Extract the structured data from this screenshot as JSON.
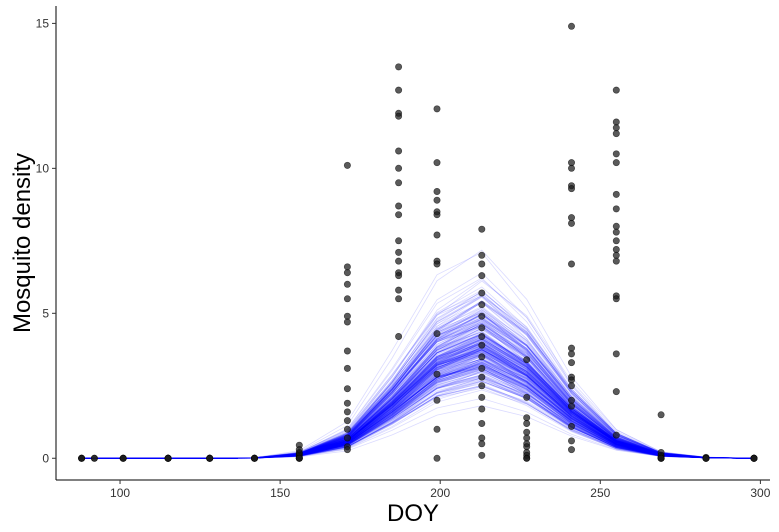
{
  "chart_data": {
    "type": "scatter",
    "title": "",
    "xlabel": "DOY",
    "ylabel": "Mosquito density",
    "xlim": [
      80,
      303
    ],
    "ylim": [
      -0.75,
      15.6
    ],
    "xticks": [
      100,
      150,
      200,
      250,
      300
    ],
    "yticks": [
      0,
      5,
      10,
      15
    ],
    "grid": false,
    "legend": "none",
    "colors": {
      "points": "#1a1a1a",
      "curves": "#0000ff",
      "axis": "#000000"
    },
    "curve_x": [
      88,
      101,
      115,
      128,
      142,
      156,
      171,
      185,
      199,
      213,
      227,
      241,
      255,
      269,
      283,
      298
    ],
    "curve_mean": [
      0,
      0,
      0,
      0,
      0.01,
      0.12,
      0.6,
      1.85,
      3.3,
      3.9,
      3.0,
      1.55,
      0.55,
      0.12,
      0.02,
      0
    ],
    "curve_count": 300,
    "points": [
      {
        "x": 88,
        "y": [
          0,
          0,
          0,
          0
        ]
      },
      {
        "x": 92,
        "y": [
          0,
          0
        ]
      },
      {
        "x": 101,
        "y": [
          0,
          0,
          0,
          0
        ]
      },
      {
        "x": 115,
        "y": [
          0,
          0,
          0,
          0,
          0,
          0,
          0
        ]
      },
      {
        "x": 128,
        "y": [
          0,
          0,
          0,
          0,
          0,
          0
        ]
      },
      {
        "x": 142,
        "y": [
          0,
          0,
          0,
          0,
          0
        ]
      },
      {
        "x": 156,
        "y": [
          0.45,
          0.3,
          0.2,
          0.15,
          0.1,
          0.05,
          0,
          0,
          0,
          0
        ]
      },
      {
        "x": 171,
        "y": [
          10.1,
          6.6,
          6.4,
          6.0,
          5.5,
          4.9,
          4.7,
          3.7,
          3.1,
          2.4,
          1.9,
          1.6,
          1.3,
          1.0,
          0.7,
          0.4,
          0.3
        ]
      },
      {
        "x": 187,
        "y": [
          13.5,
          12.7,
          11.9,
          11.8,
          10.6,
          10.0,
          9.5,
          8.7,
          8.4,
          7.5,
          7.1,
          6.8,
          6.4,
          6.3,
          5.8,
          5.5,
          4.2
        ]
      },
      {
        "x": 199,
        "y": [
          12.05,
          10.2,
          9.2,
          8.9,
          8.5,
          8.4,
          7.7,
          6.8,
          6.7,
          4.3,
          2.9,
          2.0,
          1.0,
          0
        ]
      },
      {
        "x": 213,
        "y": [
          7.9,
          7.0,
          6.7,
          6.3,
          5.7,
          5.3,
          4.9,
          4.5,
          4.2,
          3.9,
          3.5,
          3.1,
          2.8,
          2.5,
          2.1,
          1.7,
          1.2,
          0.7,
          0.5,
          0.1
        ]
      },
      {
        "x": 227,
        "y": [
          3.4,
          2.1,
          1.4,
          1.2,
          0.9,
          0.7,
          0.5,
          0.4,
          0.2,
          0.1,
          0,
          0
        ]
      },
      {
        "x": 241,
        "y": [
          14.9,
          10.2,
          10.0,
          9.4,
          9.3,
          8.3,
          8.1,
          6.7,
          3.8,
          3.6,
          3.3,
          2.8,
          2.7,
          2.5,
          2.0,
          1.8,
          1.1,
          0.6,
          0.3
        ]
      },
      {
        "x": 255,
        "y": [
          12.7,
          11.6,
          11.4,
          11.2,
          10.5,
          10.2,
          9.1,
          8.6,
          8.0,
          7.8,
          7.5,
          7.2,
          7.0,
          6.8,
          5.6,
          5.5,
          3.6,
          2.3,
          0.8
        ]
      },
      {
        "x": 269,
        "y": [
          1.5,
          0.2,
          0.1,
          0.05,
          0,
          0,
          0,
          0
        ]
      },
      {
        "x": 283,
        "y": [
          0.03,
          0,
          0,
          0,
          0,
          0
        ]
      },
      {
        "x": 298,
        "y": [
          0,
          0,
          0,
          0,
          0,
          0
        ]
      }
    ]
  }
}
